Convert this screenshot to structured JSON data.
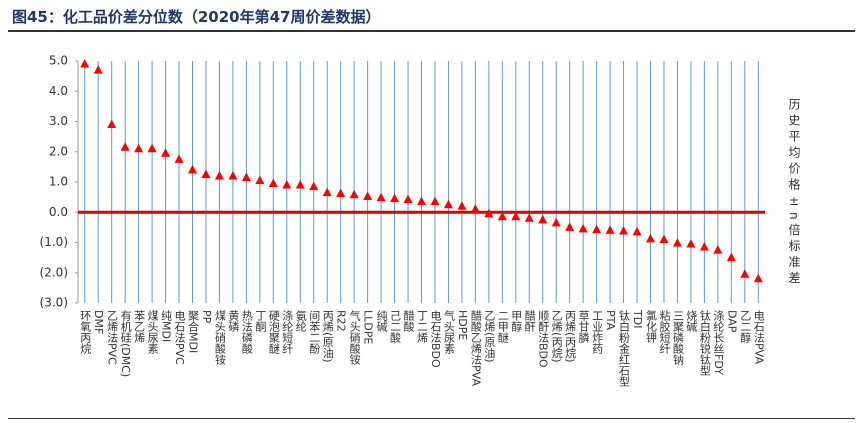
{
  "title": "图45：化工品价差分位数（2020年第47周价差数据）",
  "chart_data": {
    "type": "scatter_category",
    "side_label": "历史平均价格±n倍标准差",
    "categories": [
      "环氧丙烷",
      "DMF",
      "乙烯法PVC",
      "有机硅(DMC)",
      "苯乙烯",
      "煤头尿素",
      "纯MDI",
      "电石法PVC",
      "聚合MDI",
      "PP",
      "煤头硝酸铵",
      "黄磷",
      "热法磷酸",
      "丁酮",
      "硬泡聚醚",
      "涤纶短纤",
      "氨纶",
      "间苯二酚",
      "丙烯(原油)",
      "R22",
      "气头硝酸铵",
      "LLDPE",
      "纯碱",
      "己二酸",
      "醋酸",
      "丁二烯",
      "电石法BDO",
      "气头尿素",
      "HDPE",
      "醋酸乙烯法PVA",
      "乙烯(原油)",
      "二甲醚",
      "甲醇",
      "醋酐",
      "顺酐法BDO",
      "乙烯(丙烷)",
      "丙烯(丙烷)",
      "草甘膦",
      "工业炸药",
      "PTA",
      "钛白粉金红石型",
      "TDI",
      "氯化钾",
      "粘胶短纤",
      "三聚磷酸钠",
      "烧碱",
      "钛白粉锐钛型",
      "涤纶长丝FDY",
      "DAP",
      "乙二醇",
      "电石法PVA"
    ],
    "values": [
      4.9,
      4.7,
      2.9,
      2.15,
      2.1,
      2.1,
      1.95,
      1.75,
      1.4,
      1.25,
      1.2,
      1.2,
      1.15,
      1.05,
      0.95,
      0.9,
      0.9,
      0.85,
      0.65,
      0.62,
      0.58,
      0.52,
      0.48,
      0.45,
      0.42,
      0.35,
      0.35,
      0.25,
      0.2,
      0.1,
      -0.05,
      -0.15,
      -0.15,
      -0.2,
      -0.25,
      -0.35,
      -0.5,
      -0.55,
      -0.58,
      -0.6,
      -0.62,
      -0.65,
      -0.88,
      -0.9,
      -1.02,
      -1.05,
      -1.15,
      -1.25,
      -1.5,
      -2.05,
      -2.2
    ],
    "color": "#ff0000",
    "grid_color": "#5b9bd5",
    "zero_line_color": "#e00000",
    "ylim": [
      -3,
      5
    ],
    "yticks": [
      {
        "value": -3,
        "label": "(3.0)"
      },
      {
        "value": -2,
        "label": "(2.0)"
      },
      {
        "value": -1,
        "label": "(1.0)"
      },
      {
        "value": 0,
        "label": "0.0"
      },
      {
        "value": 1,
        "label": "1.0"
      },
      {
        "value": 2,
        "label": "2.0"
      },
      {
        "value": 3,
        "label": "3.0"
      },
      {
        "value": 4,
        "label": "4.0"
      },
      {
        "value": 5,
        "label": "5.0"
      }
    ]
  }
}
